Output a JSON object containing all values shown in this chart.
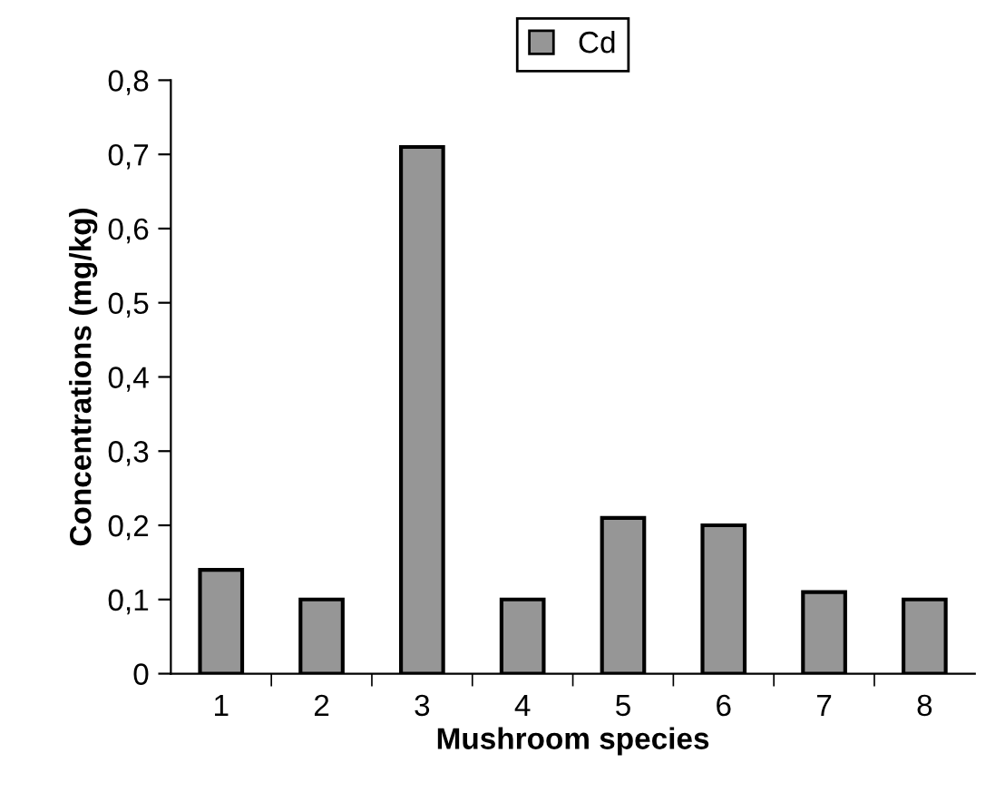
{
  "chart_data": {
    "type": "bar",
    "xlabel": "Mushroom species",
    "ylabel": "Concentrations (mg/kg)",
    "categories": [
      "1",
      "2",
      "3",
      "4",
      "5",
      "6",
      "7",
      "8"
    ],
    "series": [
      {
        "name": "Cd",
        "color": "#969696",
        "values": [
          0.14,
          0.1,
          0.71,
          0.1,
          0.21,
          0.2,
          0.11,
          0.1
        ]
      }
    ],
    "ylim": [
      0,
      0.8
    ],
    "yticks": [
      {
        "value": 0,
        "label": "0"
      },
      {
        "value": 0.1,
        "label": "0,1"
      },
      {
        "value": 0.2,
        "label": "0,2"
      },
      {
        "value": 0.3,
        "label": "0,3"
      },
      {
        "value": 0.4,
        "label": "0,4"
      },
      {
        "value": 0.5,
        "label": "0,5"
      },
      {
        "value": 0.6,
        "label": "0,6"
      },
      {
        "value": 0.7,
        "label": "0,7"
      },
      {
        "value": 0.8,
        "label": "0,8"
      }
    ],
    "grid": false,
    "legend": "top"
  }
}
